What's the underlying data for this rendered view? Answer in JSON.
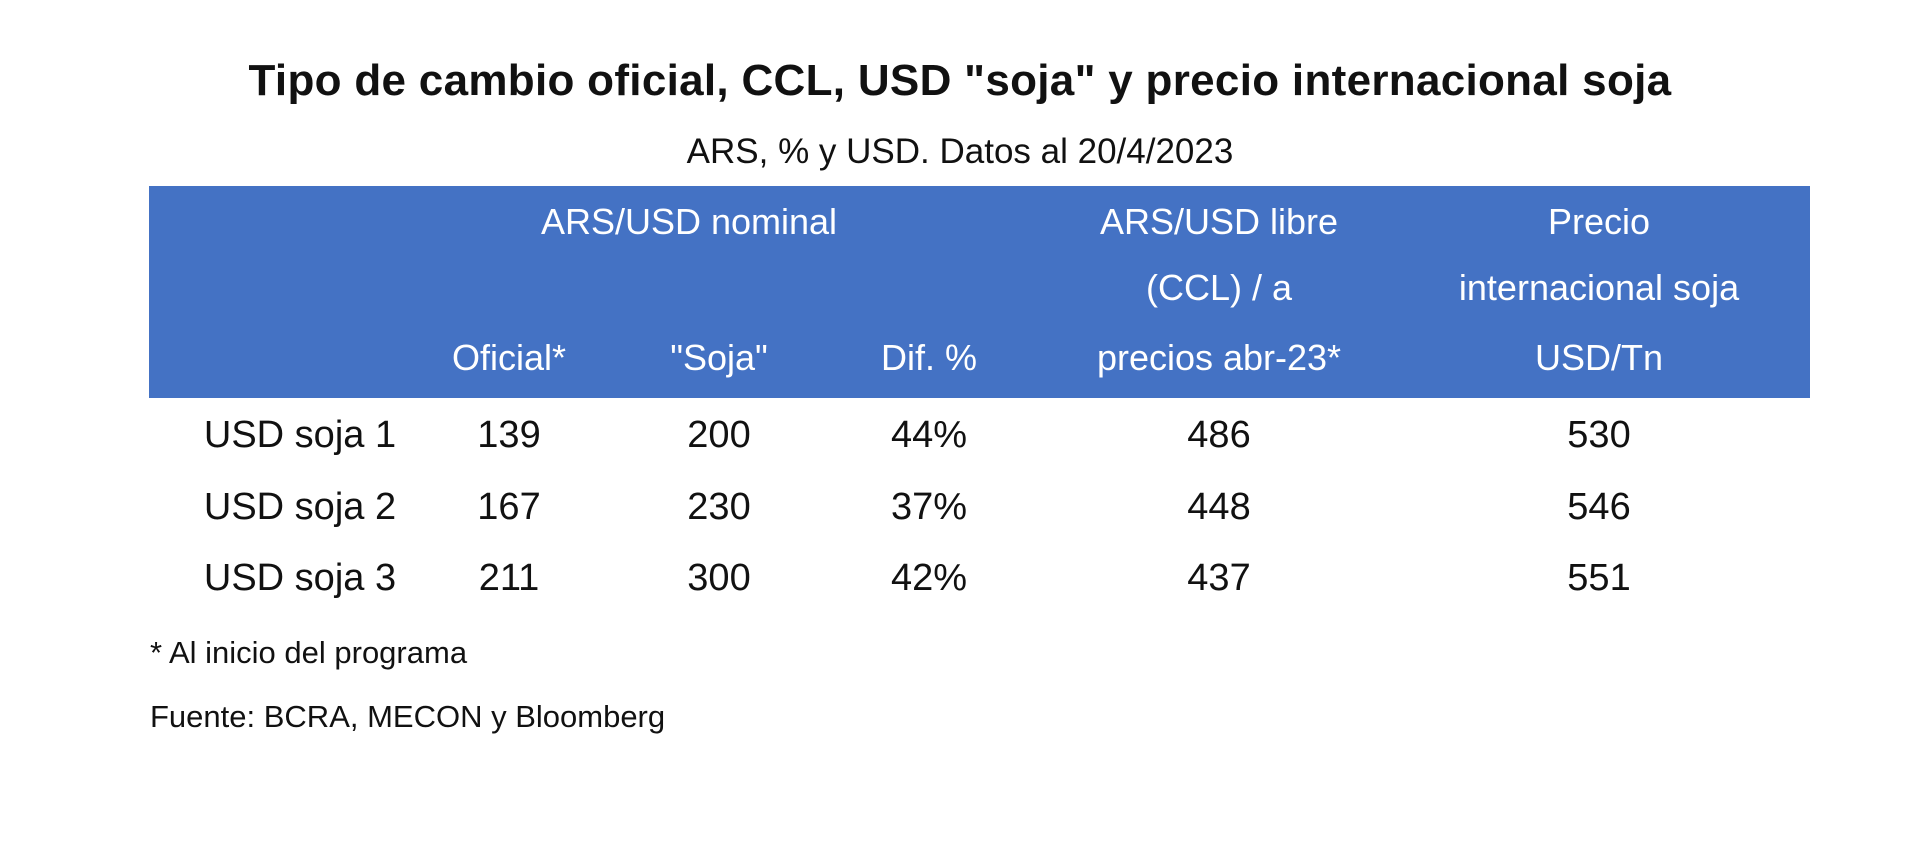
{
  "chart_data": {
    "type": "table",
    "title": "Tipo de cambio oficial, CCL, USD \"soja\" y precio internacional soja",
    "subtitle": "ARS, % y USD. Datos al 20/4/2023",
    "group_header": "ARS/USD nominal",
    "columns": {
      "oficial": "Oficial*",
      "soja": "\"Soja\"",
      "dif": "Dif. %",
      "ccl": [
        "ARS/USD libre",
        "(CCL) / a",
        "precios abr-23*"
      ],
      "precio": [
        "Precio",
        "internacional soja",
        "USD/Tn"
      ]
    },
    "rows": [
      {
        "label": "USD soja 1",
        "oficial": "139",
        "soja": "200",
        "dif": "44%",
        "ccl": "486",
        "precio": "530"
      },
      {
        "label": "USD soja 2",
        "oficial": "167",
        "soja": "230",
        "dif": "37%",
        "ccl": "448",
        "precio": "546"
      },
      {
        "label": "USD soja 3",
        "oficial": "211",
        "soja": "300",
        "dif": "42%",
        "ccl": "437",
        "precio": "551"
      }
    ],
    "footnote": "* Al inicio del programa",
    "source": "Fuente: BCRA, MECON y Bloomberg"
  },
  "colors": {
    "header_bg": "#4472c4",
    "header_text": "#ffffff",
    "text": "#111111"
  }
}
